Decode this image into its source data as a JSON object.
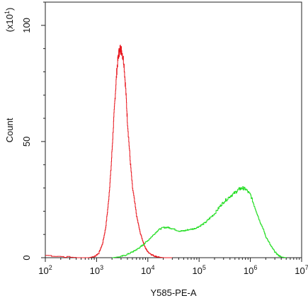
{
  "chart_data": {
    "type": "line",
    "title": "",
    "xlabel": "Y585-PE-A",
    "ylabel": "Count",
    "y_multiplier_label": "(x10",
    "y_multiplier_exp": "1",
    "y_multiplier_close": ")",
    "x_scale": "log10",
    "xlim": [
      100,
      10000000
    ],
    "ylim": [
      0,
      110
    ],
    "x_ticks": [
      {
        "value": 100,
        "base": "10",
        "exp": "2"
      },
      {
        "value": 1000,
        "base": "10",
        "exp": "3"
      },
      {
        "value": 10000,
        "base": "10",
        "exp": "4"
      },
      {
        "value": 100000,
        "base": "10",
        "exp": "5"
      },
      {
        "value": 1000000,
        "base": "10",
        "exp": "6"
      },
      {
        "value": 10000000,
        "base": "10",
        "exp": "7"
      }
    ],
    "y_ticks": [
      {
        "value": 0,
        "label": "0"
      },
      {
        "value": 50,
        "label": "50"
      },
      {
        "value": 100,
        "label": "100"
      }
    ],
    "grid": false,
    "legend": "none",
    "series": [
      {
        "color": "#e8141c",
        "x": [
          100,
          400,
          700,
          900,
          1100,
          1300,
          1500,
          1700,
          1900,
          2100,
          2300,
          2500,
          2700,
          2900,
          3100,
          3400,
          3700,
          4000,
          4500,
          5000,
          6000,
          7000,
          8000,
          9000,
          10000,
          12000,
          14000,
          17000,
          20000,
          30000
        ],
        "y": [
          1,
          0,
          0,
          0.5,
          2,
          6,
          13,
          24,
          38,
          55,
          70,
          82,
          88,
          90,
          89,
          84,
          72,
          58,
          42,
          30,
          18,
          11,
          7,
          4,
          2.5,
          1.2,
          0.6,
          0.2,
          0,
          0
        ]
      },
      {
        "color": "#22dd22",
        "x": [
          2000,
          3000,
          4000,
          5000,
          6000,
          7000,
          8000,
          10000,
          13000,
          16000,
          20000,
          25000,
          30000,
          40000,
          50000,
          60000,
          80000,
          100000,
          130000,
          160000,
          200000,
          250000,
          300000,
          400000,
          500000,
          600000,
          700000,
          800000,
          1000000,
          1200000,
          1500000,
          1800000,
          2000000,
          2500000,
          3000000,
          3500000,
          4000000,
          5000000
        ],
        "y": [
          0,
          0.5,
          1.5,
          2.5,
          3.5,
          4.5,
          5.5,
          7.5,
          10,
          12,
          13,
          13,
          12.5,
          11.5,
          11.5,
          12,
          12.5,
          13.5,
          15,
          17,
          19,
          22,
          24,
          26.5,
          28,
          29.5,
          30,
          29.5,
          27,
          22,
          16,
          12,
          9,
          5,
          2.5,
          1,
          0.3,
          0
        ]
      }
    ]
  }
}
